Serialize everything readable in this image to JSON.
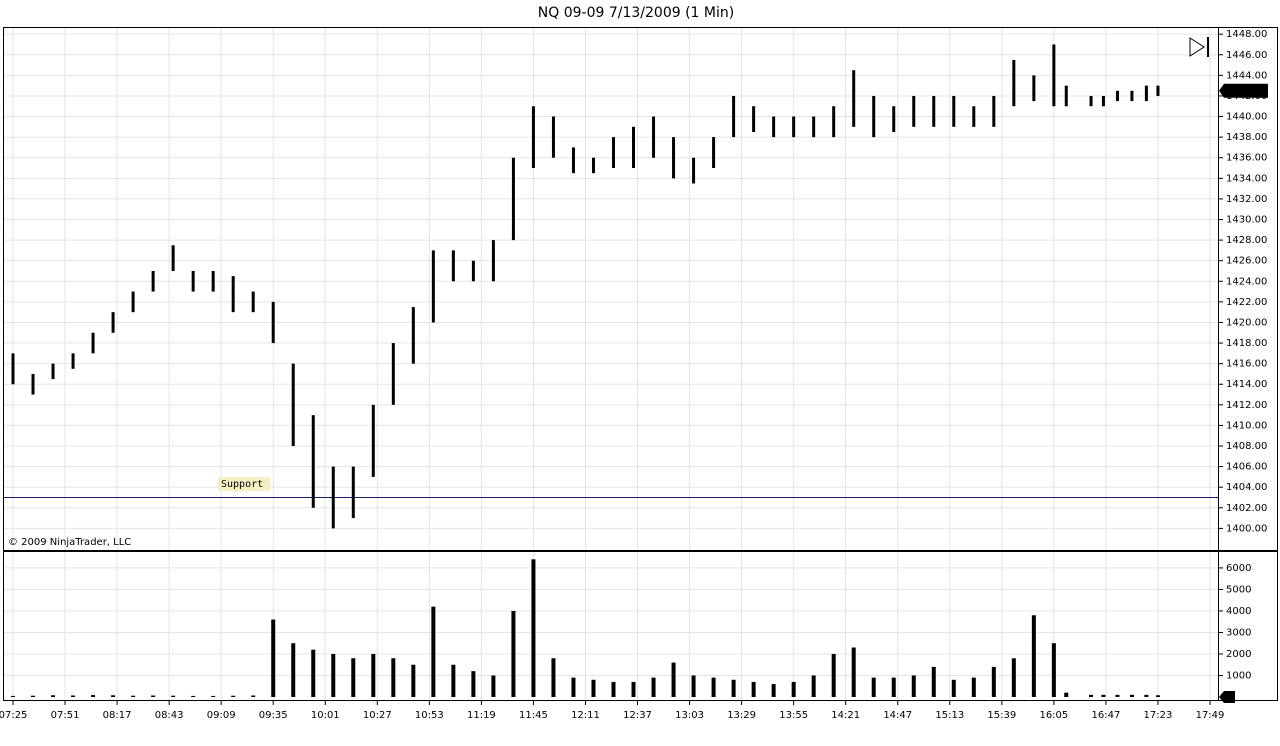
{
  "chart_data": [
    {
      "type": "hilo",
      "title": "NQ 09-09  7/13/2009 (1 Min)",
      "color": "#000000",
      "x": [
        "07:25",
        "07:35",
        "07:45",
        "07:55",
        "08:05",
        "08:15",
        "08:25",
        "08:35",
        "08:45",
        "08:55",
        "09:05",
        "09:15",
        "09:25",
        "09:35",
        "09:45",
        "09:55",
        "10:05",
        "10:15",
        "10:25",
        "10:35",
        "10:45",
        "10:55",
        "11:05",
        "11:15",
        "11:25",
        "11:35",
        "11:45",
        "11:55",
        "12:05",
        "12:15",
        "12:25",
        "12:35",
        "12:45",
        "12:55",
        "13:05",
        "13:15",
        "13:25",
        "13:35",
        "13:45",
        "13:55",
        "14:05",
        "14:15",
        "14:25",
        "14:35",
        "14:45",
        "14:55",
        "15:05",
        "15:15",
        "15:25",
        "15:35",
        "15:45",
        "15:55",
        "16:05",
        "16:15",
        "16:35",
        "16:45",
        "16:55",
        "17:05",
        "17:15",
        "17:23"
      ],
      "high": [
        1417,
        1415,
        1416,
        1417,
        1419,
        1421,
        1423,
        1425,
        1427.5,
        1425,
        1425,
        1424.5,
        1423,
        1422,
        1416,
        1411,
        1406,
        1406,
        1412,
        1418,
        1421.5,
        1427,
        1427,
        1426,
        1428,
        1436,
        1441,
        1440,
        1437,
        1436,
        1438,
        1439,
        1440,
        1438,
        1436,
        1438,
        1442,
        1441,
        1440,
        1440,
        1440,
        1441,
        1444.5,
        1442,
        1441,
        1442,
        1442,
        1442,
        1441,
        1442,
        1445.5,
        1444,
        1447,
        1443,
        1442,
        1442,
        1442.5,
        1442.5,
        1443,
        1443
      ],
      "low": [
        1414,
        1413,
        1414.5,
        1415.5,
        1417,
        1419,
        1421,
        1423,
        1425,
        1423,
        1423,
        1421,
        1421,
        1418,
        1408,
        1402,
        1400,
        1401,
        1405,
        1412,
        1416,
        1420,
        1424,
        1424,
        1424,
        1428,
        1435,
        1436,
        1434.5,
        1434.5,
        1435,
        1435,
        1436,
        1434,
        1433.5,
        1435,
        1438,
        1438.5,
        1438,
        1438,
        1438,
        1438,
        1439,
        1438,
        1438.5,
        1439,
        1439,
        1439,
        1439,
        1439,
        1441,
        1441.5,
        1441,
        1441,
        1441,
        1441,
        1441.5,
        1441.5,
        1441.5,
        1442
      ],
      "ylim": [
        1397.9,
        1448.6
      ],
      "yticks": [
        {
          "value": 1400,
          "label": "1400.00"
        },
        {
          "value": 1402,
          "label": "1402.00"
        },
        {
          "value": 1404,
          "label": "1404.00"
        },
        {
          "value": 1406,
          "label": "1406.00"
        },
        {
          "value": 1408,
          "label": "1408.00"
        },
        {
          "value": 1410,
          "label": "1410.00"
        },
        {
          "value": 1412,
          "label": "1412.00"
        },
        {
          "value": 1414,
          "label": "1414.00"
        },
        {
          "value": 1416,
          "label": "1416.00"
        },
        {
          "value": 1418,
          "label": "1418.00"
        },
        {
          "value": 1420,
          "label": "1420.00"
        },
        {
          "value": 1422,
          "label": "1422.00"
        },
        {
          "value": 1424,
          "label": "1424.00"
        },
        {
          "value": 1426,
          "label": "1426.00"
        },
        {
          "value": 1428,
          "label": "1428.00"
        },
        {
          "value": 1430,
          "label": "1430.00"
        },
        {
          "value": 1432,
          "label": "1432.00"
        },
        {
          "value": 1434,
          "label": "1434.00"
        },
        {
          "value": 1436,
          "label": "1436.00"
        },
        {
          "value": 1438,
          "label": "1438.00"
        },
        {
          "value": 1440,
          "label": "1440.00"
        },
        {
          "value": 1442,
          "label": "1442.00"
        },
        {
          "value": 1444,
          "label": "1444.00"
        },
        {
          "value": 1446,
          "label": "1446.00"
        },
        {
          "value": 1448,
          "label": "1448.00"
        }
      ],
      "last_price": {
        "value": 1442.5,
        "label": "1442.50"
      },
      "support": {
        "label": "Support",
        "value": 1403
      },
      "copyright": "© 2009 NinjaTrader, LLC",
      "grid": true
    },
    {
      "type": "bar",
      "color": "#000000",
      "values": [
        50,
        60,
        80,
        70,
        90,
        80,
        60,
        70,
        60,
        50,
        50,
        60,
        70,
        3600,
        2500,
        2200,
        2000,
        1800,
        2000,
        1800,
        1500,
        4200,
        1500,
        1200,
        1000,
        4000,
        6400,
        1800,
        900,
        800,
        700,
        700,
        900,
        1600,
        1000,
        900,
        800,
        700,
        600,
        700,
        1000,
        2000,
        2300,
        900,
        900,
        1000,
        1400,
        800,
        900,
        1400,
        1800,
        3800,
        2500,
        200,
        100,
        100,
        100,
        100,
        100,
        80
      ],
      "ylim": [
        -140,
        6740
      ],
      "yticks": [
        1000,
        2000,
        3000,
        4000,
        5000,
        6000
      ],
      "last_volume": 0,
      "xticks": [
        "07:25",
        "07:51",
        "08:17",
        "08:43",
        "09:09",
        "09:35",
        "10:01",
        "10:27",
        "10:53",
        "11:19",
        "11:45",
        "12:11",
        "12:37",
        "13:03",
        "13:29",
        "13:55",
        "14:21",
        "14:47",
        "15:13",
        "15:39",
        "16:05",
        "16:47",
        "17:23",
        "17:49"
      ],
      "grid": true
    }
  ]
}
